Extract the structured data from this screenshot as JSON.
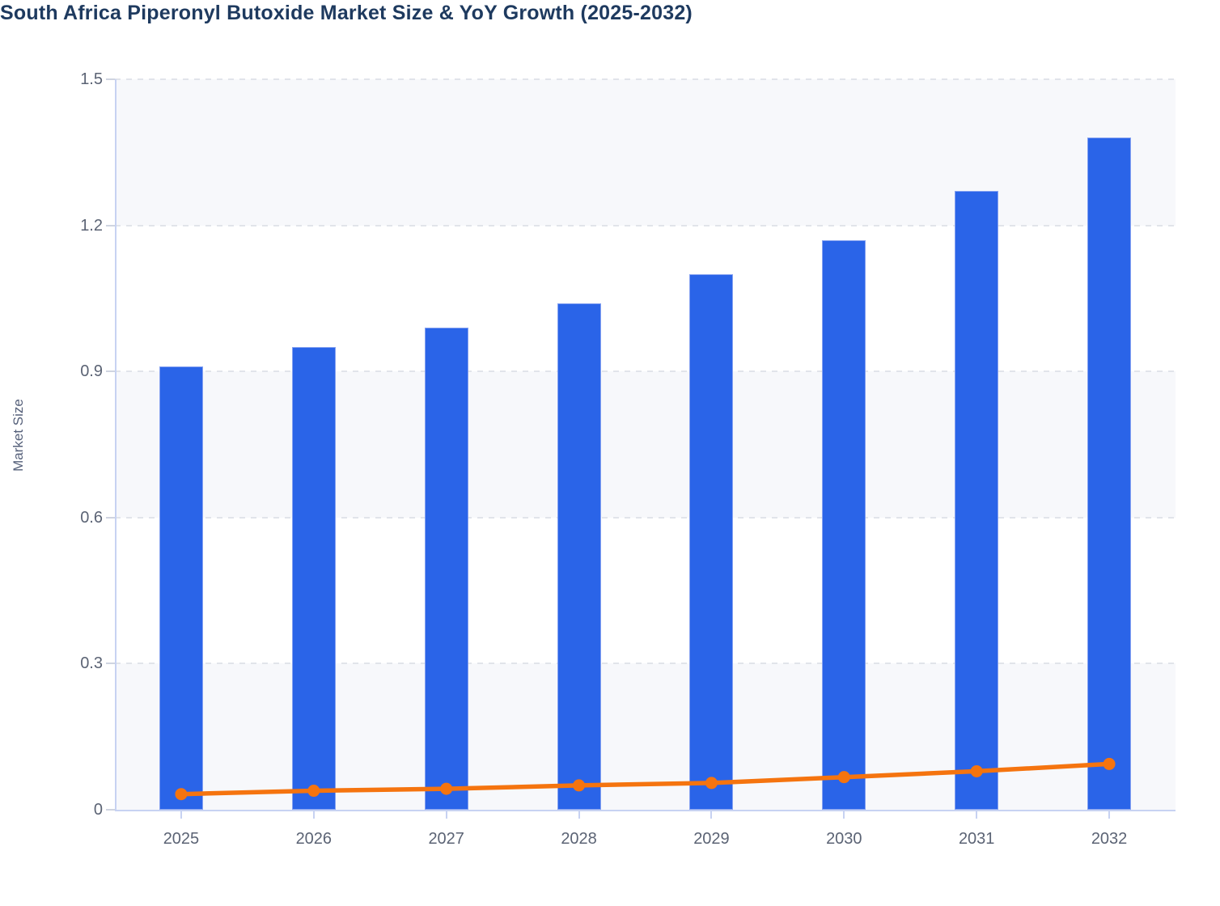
{
  "title": "South Africa Piperonyl Butoxide Market Size & YoY Growth (2025-2032)",
  "y_axis_title": "Market Size",
  "colors": {
    "bar_fill": "#2a64e8",
    "bar_border": "#86a2f1",
    "line": "#f5740f",
    "marker": "#f5740f",
    "title_text": "#1e3a5f",
    "tick_text": "#5b6374",
    "axis_line": "#c7d2f2",
    "gridline": "#e1e4ea",
    "band_fill": "#f7f8fb",
    "background": "#ffffff"
  },
  "chart_data": {
    "type": "bar",
    "title": "South Africa Piperonyl Butoxide Market Size & YoY Growth (2025-2032)",
    "xlabel": "",
    "ylabel": "Market Size",
    "categories": [
      "2025",
      "2026",
      "2027",
      "2028",
      "2029",
      "2030",
      "2031",
      "2032"
    ],
    "series": [
      {
        "name": "Market Size",
        "type": "bar",
        "values": [
          0.91,
          0.95,
          0.99,
          1.04,
          1.1,
          1.17,
          1.27,
          1.38
        ]
      },
      {
        "name": "YoY Growth",
        "type": "line",
        "values": [
          0.032,
          0.039,
          0.043,
          0.05,
          0.055,
          0.067,
          0.079,
          0.094
        ]
      }
    ],
    "ylim": [
      0,
      1.5
    ],
    "yticks": [
      0,
      0.3,
      0.6,
      0.9,
      1.2,
      1.5
    ],
    "ytick_labels": [
      "0",
      "0.3",
      "0.6",
      "0.9",
      "1.2",
      "1.5"
    ],
    "grid": "horizontal-dashed",
    "bands": "alternating horizontal stripes between gridlines",
    "legend_position": "none"
  }
}
